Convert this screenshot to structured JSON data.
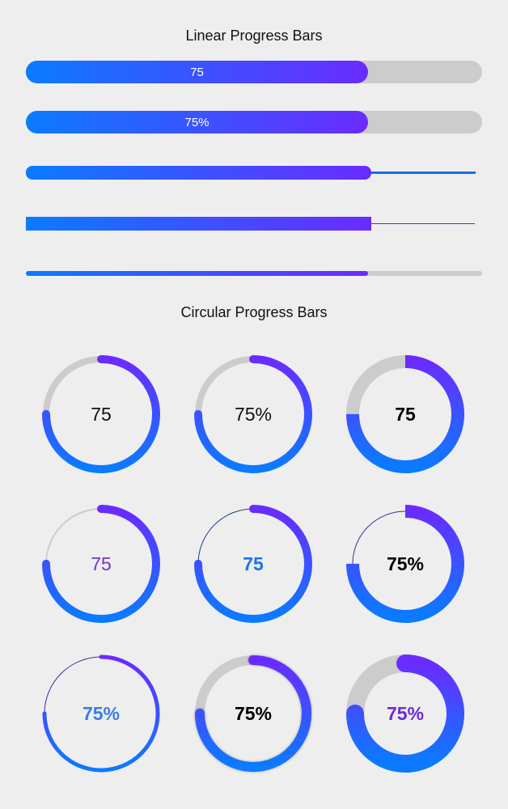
{
  "linear": {
    "title": "Linear Progress Bars",
    "value": 75,
    "bars": [
      {
        "label": "75"
      },
      {
        "label": "75%"
      },
      {
        "label": ""
      },
      {
        "label": ""
      },
      {
        "label": ""
      }
    ]
  },
  "circular": {
    "title": "Circular Progress Bars",
    "value": 75,
    "rings": [
      {
        "label": "75",
        "text_color": "#111111"
      },
      {
        "label": "75%",
        "text_color": "#111111"
      },
      {
        "label": "75",
        "text_color": "#000000"
      },
      {
        "label": "75",
        "text_color": "#7b2fd0"
      },
      {
        "label": "75",
        "text_color": "#1a73e8"
      },
      {
        "label": "75%",
        "text_color": "#000000"
      },
      {
        "label": "75%",
        "text_color": "#3b7de0"
      },
      {
        "label": "75%",
        "text_color": "#000000"
      },
      {
        "label": "75%",
        "text_color": "#6a2bd8"
      }
    ]
  },
  "colors": {
    "gradient_start": "#0a7bff",
    "gradient_end": "#6a2bff",
    "track": "#cccccc",
    "background": "#eeeeee"
  }
}
